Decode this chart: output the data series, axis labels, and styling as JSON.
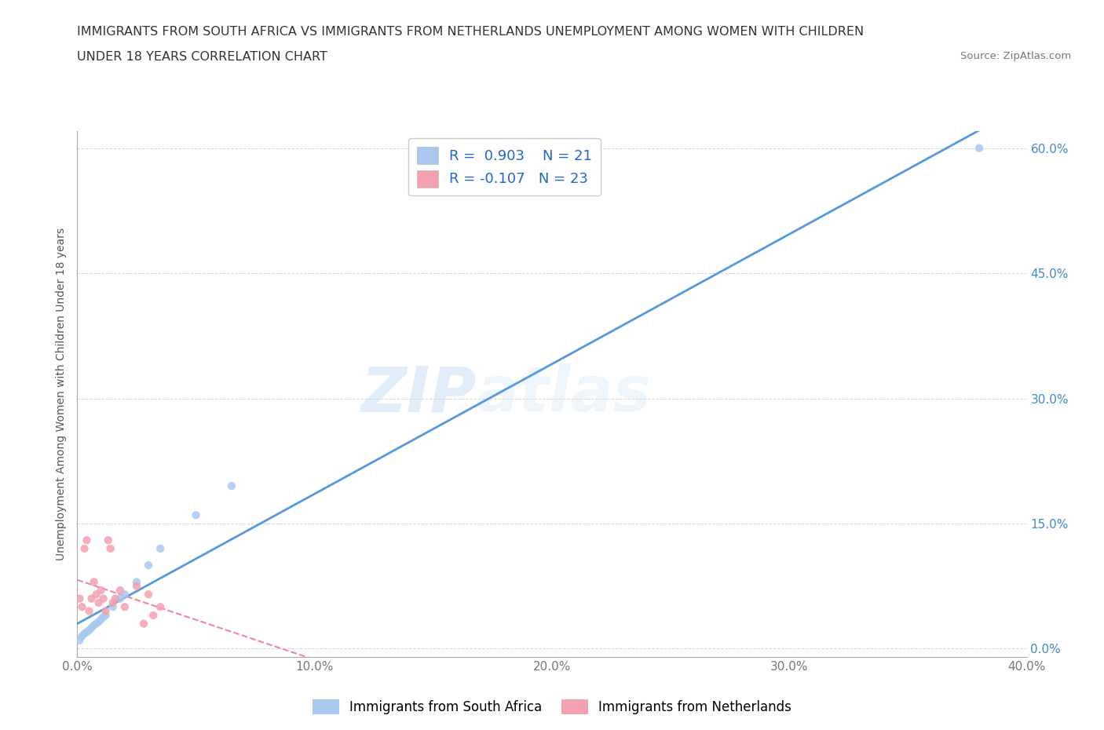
{
  "title_line1": "IMMIGRANTS FROM SOUTH AFRICA VS IMMIGRANTS FROM NETHERLANDS UNEMPLOYMENT AMONG WOMEN WITH CHILDREN",
  "title_line2": "UNDER 18 YEARS CORRELATION CHART",
  "source": "Source: ZipAtlas.com",
  "ylabel": "Unemployment Among Women with Children Under 18 years",
  "xlim": [
    0.0,
    0.4
  ],
  "ylim": [
    -0.01,
    0.62
  ],
  "xticks": [
    0.0,
    0.1,
    0.2,
    0.3,
    0.4
  ],
  "yticks": [
    0.0,
    0.15,
    0.3,
    0.45,
    0.6
  ],
  "xtick_labels": [
    "0.0%",
    "10.0%",
    "20.0%",
    "30.0%",
    "40.0%"
  ],
  "ytick_labels": [
    "0.0%",
    "15.0%",
    "30.0%",
    "45.0%",
    "60.0%"
  ],
  "color_sa": "#a8c8f0",
  "color_nl": "#f4a0b0",
  "color_trend_sa": "#5599dd",
  "color_trend_nl": "#ee8899",
  "R_sa": 0.903,
  "N_sa": 21,
  "R_nl": -0.107,
  "N_nl": 23,
  "watermark_zip": "ZIP",
  "watermark_atlas": "atlas",
  "legend_label_sa": "Immigrants from South Africa",
  "legend_label_nl": "Immigrants from Netherlands",
  "sa_x": [
    0.001,
    0.002,
    0.003,
    0.004,
    0.005,
    0.006,
    0.007,
    0.008,
    0.009,
    0.01,
    0.011,
    0.012,
    0.015,
    0.018,
    0.02,
    0.025,
    0.03,
    0.035,
    0.05,
    0.065,
    0.38
  ],
  "sa_y": [
    0.01,
    0.015,
    0.018,
    0.02,
    0.022,
    0.025,
    0.028,
    0.03,
    0.032,
    0.035,
    0.038,
    0.04,
    0.05,
    0.06,
    0.065,
    0.08,
    0.1,
    0.12,
    0.16,
    0.195,
    0.6
  ],
  "nl_x": [
    0.001,
    0.002,
    0.003,
    0.004,
    0.005,
    0.006,
    0.007,
    0.008,
    0.009,
    0.01,
    0.011,
    0.012,
    0.013,
    0.014,
    0.015,
    0.016,
    0.018,
    0.02,
    0.025,
    0.028,
    0.03,
    0.032,
    0.035
  ],
  "nl_y": [
    0.06,
    0.05,
    0.12,
    0.13,
    0.045,
    0.06,
    0.08,
    0.065,
    0.055,
    0.07,
    0.06,
    0.045,
    0.13,
    0.12,
    0.055,
    0.06,
    0.07,
    0.05,
    0.075,
    0.03,
    0.065,
    0.04,
    0.05
  ]
}
